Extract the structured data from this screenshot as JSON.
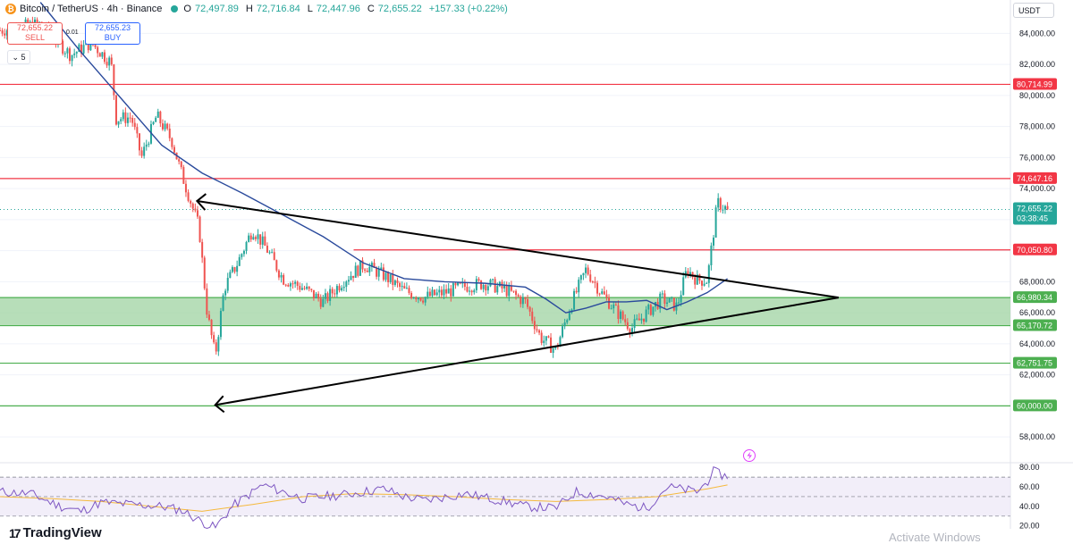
{
  "header": {
    "symbol": "Bitcoin / TetherUS · 4h · Binance",
    "ohlc": [
      {
        "k": "O",
        "v": "72,497.89"
      },
      {
        "k": "H",
        "v": "72,716.84"
      },
      {
        "k": "L",
        "v": "72,447.96"
      },
      {
        "k": "C",
        "v": "72,655.22"
      },
      {
        "k": "",
        "v": "+157.33 (+0.22%)"
      }
    ]
  },
  "trade": {
    "sell_price": "72,655.22",
    "sell_label": "SELL",
    "buy_price": "72,655.23",
    "buy_label": "BUY",
    "spread": "0.01"
  },
  "interval_button": "5",
  "currency": "USDT",
  "branding": {
    "logo_text": "TradingView",
    "watermark": "Activate Windows"
  },
  "colors": {
    "up": "#26a69a",
    "down": "#ef5350",
    "ma": "#2a4a9c",
    "rsi": "#7e57c2",
    "rsi_ma": "#f5b93d",
    "resistance": "#f23645",
    "support": "#4caf50",
    "zone": "#a5d6a7"
  },
  "chart_data": [
    {
      "type": "candlestick",
      "title": "Bitcoin / TetherUS · 4h · Binance",
      "ylim": [
        56800,
        85000
      ],
      "yticks": [
        "84,000.00",
        "82,000.00",
        "80,000.00",
        "78,000.00",
        "76,000.00",
        "74,000.00",
        "72,000.00",
        "70,000.00",
        "68,000.00",
        "66,000.00",
        "64,000.00",
        "62,000.00",
        "60,000.00",
        "58,000.00"
      ],
      "ytick_values": [
        84000,
        82000,
        80000,
        78000,
        76000,
        74000,
        72000,
        70000,
        68000,
        66000,
        64000,
        62000,
        60000,
        58000
      ],
      "price_levels": [
        {
          "value": 80714.99,
          "label": "80,714.99",
          "color": "#f23645"
        },
        {
          "value": 74647.16,
          "label": "74,647.16",
          "color": "#f23645"
        },
        {
          "value": 70050.8,
          "label": "70,050.80",
          "color": "#f23645"
        },
        {
          "value": 66980.34,
          "label": "66,980.34",
          "color": "#4caf50"
        },
        {
          "value": 65170.72,
          "label": "65,170.72",
          "color": "#4caf50"
        },
        {
          "value": 62751.75,
          "label": "62,751.75",
          "color": "#4caf50"
        },
        {
          "value": 60000.0,
          "label": "60,000.00",
          "color": "#4caf50"
        }
      ],
      "zone": [
        65170.72,
        66980.34
      ],
      "current_price": {
        "value": 72655.22,
        "label": "72,655.22",
        "countdown": "03:38:45"
      },
      "triangle": {
        "upper": [
          [
            0.195,
            73200
          ],
          [
            0.83,
            66980
          ]
        ],
        "lower": [
          [
            0.213,
            60060
          ],
          [
            0.83,
            66980
          ]
        ]
      },
      "close_path": [
        [
          0.0,
          84200
        ],
        [
          0.04,
          84600
        ],
        [
          0.07,
          82600
        ],
        [
          0.09,
          83400
        ],
        [
          0.11,
          82100
        ],
        [
          0.115,
          78500
        ],
        [
          0.13,
          78600
        ],
        [
          0.14,
          76000
        ],
        [
          0.155,
          78700
        ],
        [
          0.17,
          77100
        ],
        [
          0.18,
          74900
        ],
        [
          0.19,
          72900
        ],
        [
          0.197,
          71500
        ],
        [
          0.205,
          66000
        ],
        [
          0.213,
          63200
        ],
        [
          0.222,
          67600
        ],
        [
          0.235,
          69200
        ],
        [
          0.25,
          71400
        ],
        [
          0.265,
          70000
        ],
        [
          0.28,
          68200
        ],
        [
          0.3,
          67600
        ],
        [
          0.32,
          66700
        ],
        [
          0.34,
          68100
        ],
        [
          0.36,
          69100
        ],
        [
          0.38,
          68400
        ],
        [
          0.4,
          67400
        ],
        [
          0.42,
          67000
        ],
        [
          0.44,
          67300
        ],
        [
          0.46,
          67700
        ],
        [
          0.48,
          67900
        ],
        [
          0.5,
          67500
        ],
        [
          0.52,
          66700
        ],
        [
          0.535,
          64400
        ],
        [
          0.55,
          63600
        ],
        [
          0.565,
          66500
        ],
        [
          0.58,
          68800
        ],
        [
          0.595,
          67300
        ],
        [
          0.61,
          66100
        ],
        [
          0.625,
          65000
        ],
        [
          0.64,
          66000
        ],
        [
          0.655,
          66900
        ],
        [
          0.67,
          66400
        ],
        [
          0.68,
          68800
        ],
        [
          0.69,
          68100
        ],
        [
          0.7,
          68100
        ],
        [
          0.71,
          73100
        ],
        [
          0.72,
          72655
        ]
      ],
      "ma_path": [
        [
          0.04,
          86000
        ],
        [
          0.08,
          82800
        ],
        [
          0.12,
          79800
        ],
        [
          0.16,
          76800
        ],
        [
          0.2,
          75000
        ],
        [
          0.24,
          73700
        ],
        [
          0.28,
          72300
        ],
        [
          0.32,
          70900
        ],
        [
          0.36,
          69200
        ],
        [
          0.4,
          68200
        ],
        [
          0.44,
          68000
        ],
        [
          0.48,
          67900
        ],
        [
          0.52,
          67650
        ],
        [
          0.54,
          66900
        ],
        [
          0.56,
          66000
        ],
        [
          0.58,
          66300
        ],
        [
          0.6,
          66700
        ],
        [
          0.62,
          66700
        ],
        [
          0.64,
          66800
        ],
        [
          0.66,
          66200
        ],
        [
          0.68,
          66700
        ],
        [
          0.7,
          67300
        ],
        [
          0.72,
          68200
        ]
      ]
    },
    {
      "type": "line",
      "title": "RSI",
      "ylim": [
        17,
        82
      ],
      "yticks": [
        "80.00",
        "60.00",
        "40.00",
        "20.00"
      ],
      "ytick_values": [
        80,
        60,
        40,
        20
      ],
      "band": [
        30,
        70
      ],
      "rsi_path": [
        [
          0.0,
          55
        ],
        [
          0.03,
          53
        ],
        [
          0.06,
          40
        ],
        [
          0.08,
          35
        ],
        [
          0.1,
          44
        ],
        [
          0.13,
          42
        ],
        [
          0.16,
          40
        ],
        [
          0.18,
          36
        ],
        [
          0.2,
          24
        ],
        [
          0.213,
          18
        ],
        [
          0.23,
          40
        ],
        [
          0.26,
          62
        ],
        [
          0.3,
          48
        ],
        [
          0.34,
          52
        ],
        [
          0.38,
          58
        ],
        [
          0.4,
          50
        ],
        [
          0.42,
          46
        ],
        [
          0.46,
          53
        ],
        [
          0.5,
          45
        ],
        [
          0.52,
          40
        ],
        [
          0.55,
          38
        ],
        [
          0.57,
          55
        ],
        [
          0.6,
          50
        ],
        [
          0.62,
          42
        ],
        [
          0.64,
          38
        ],
        [
          0.66,
          60
        ],
        [
          0.69,
          55
        ],
        [
          0.7,
          65
        ],
        [
          0.705,
          76
        ],
        [
          0.72,
          70
        ]
      ],
      "rsi_ma_path": [
        [
          0.0,
          50
        ],
        [
          0.05,
          48
        ],
        [
          0.1,
          45
        ],
        [
          0.15,
          40
        ],
        [
          0.2,
          35
        ],
        [
          0.25,
          42
        ],
        [
          0.3,
          50
        ],
        [
          0.35,
          53
        ],
        [
          0.4,
          52
        ],
        [
          0.45,
          50
        ],
        [
          0.5,
          47
        ],
        [
          0.55,
          45
        ],
        [
          0.6,
          47
        ],
        [
          0.65,
          50
        ],
        [
          0.7,
          58
        ],
        [
          0.72,
          62
        ]
      ]
    }
  ]
}
